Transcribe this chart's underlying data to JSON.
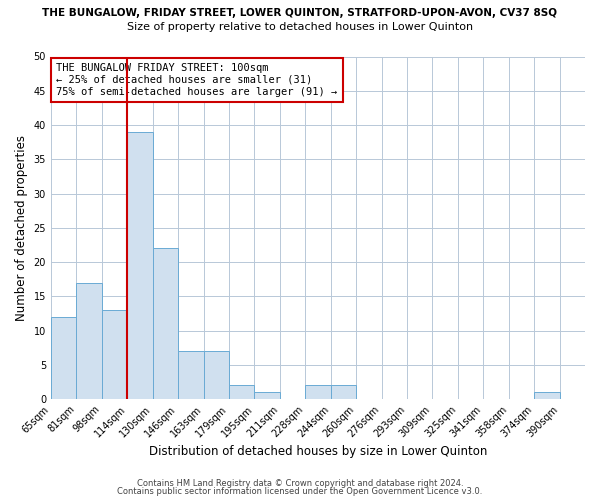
{
  "title_main": "THE BUNGALOW, FRIDAY STREET, LOWER QUINTON, STRATFORD-UPON-AVON, CV37 8SQ",
  "title_sub": "Size of property relative to detached houses in Lower Quinton",
  "xlabel": "Distribution of detached houses by size in Lower Quinton",
  "ylabel": "Number of detached properties",
  "bin_labels": [
    "65sqm",
    "81sqm",
    "98sqm",
    "114sqm",
    "130sqm",
    "146sqm",
    "163sqm",
    "179sqm",
    "195sqm",
    "211sqm",
    "228sqm",
    "244sqm",
    "260sqm",
    "276sqm",
    "293sqm",
    "309sqm",
    "325sqm",
    "341sqm",
    "358sqm",
    "374sqm",
    "390sqm"
  ],
  "bar_heights": [
    12,
    17,
    13,
    39,
    22,
    7,
    7,
    2,
    1,
    0,
    2,
    2,
    0,
    0,
    0,
    0,
    0,
    0,
    0,
    1,
    0
  ],
  "bar_color": "#d0e0ef",
  "bar_edgecolor": "#6aaad4",
  "vline_x": 3,
  "vline_color": "#cc0000",
  "ylim": [
    0,
    50
  ],
  "annotation_text": "THE BUNGALOW FRIDAY STREET: 100sqm\n← 25% of detached houses are smaller (31)\n75% of semi-detached houses are larger (91) →",
  "annotation_box_edgecolor": "#cc0000",
  "footer1": "Contains HM Land Registry data © Crown copyright and database right 2024.",
  "footer2": "Contains public sector information licensed under the Open Government Licence v3.0.",
  "background_color": "#ffffff",
  "grid_color": "#b8c8d8"
}
